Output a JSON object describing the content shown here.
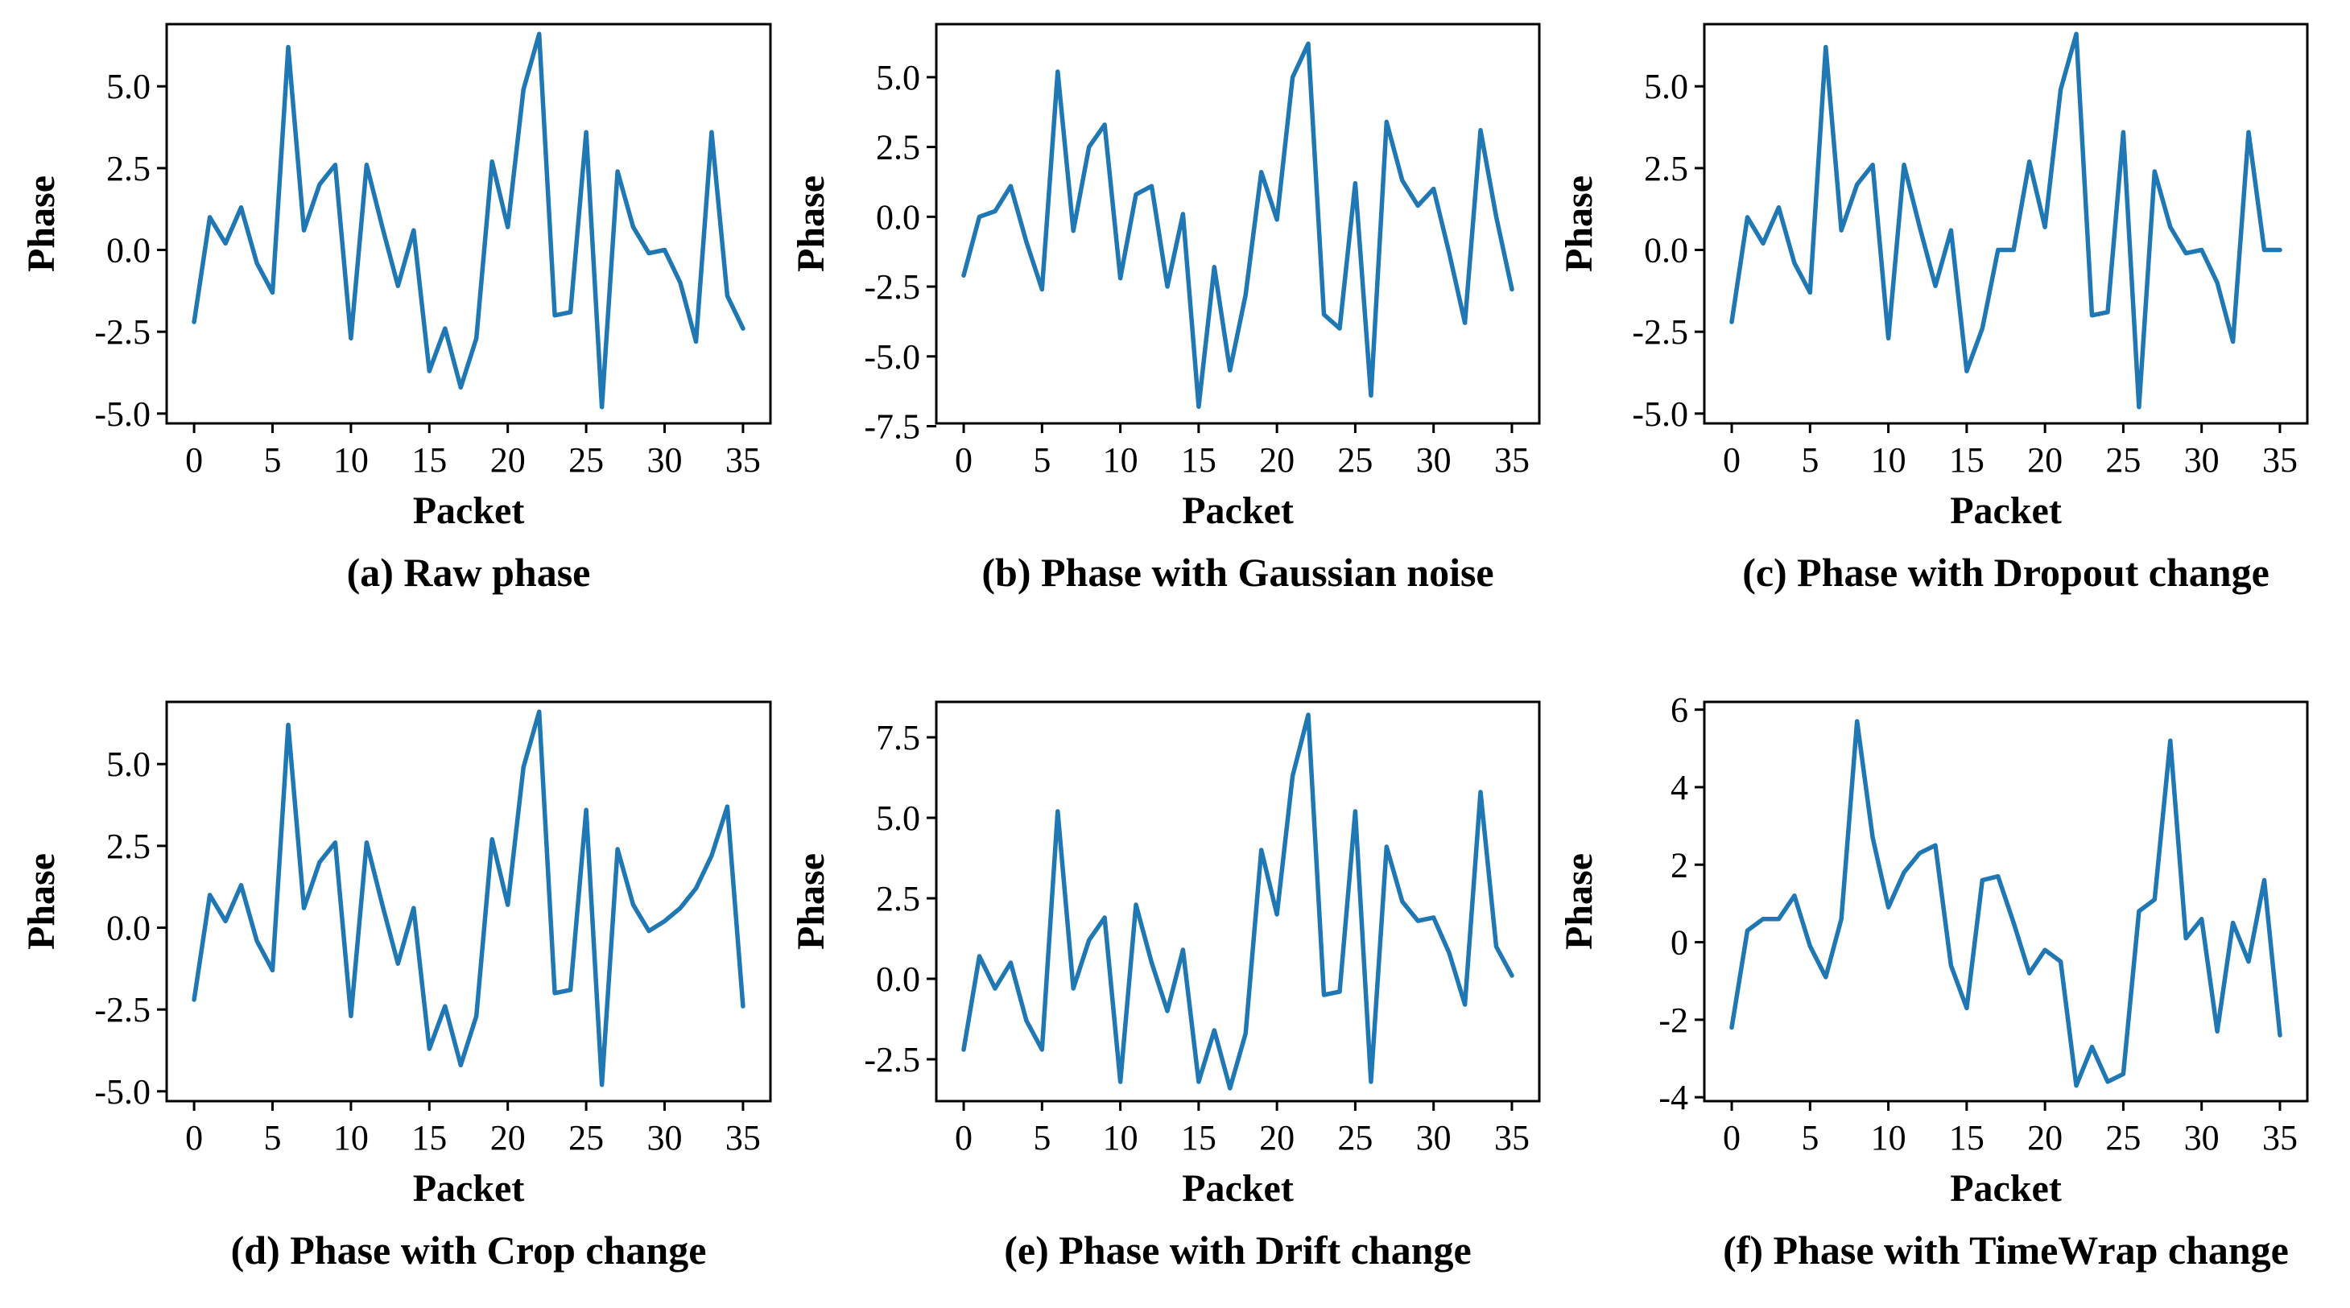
{
  "chart_data": [
    {
      "type": "line",
      "caption": "(a) Raw phase",
      "xlabel": "Packet",
      "ylabel": "Phase",
      "xlim": [
        -1.75,
        36.75
      ],
      "ylim": [
        -5.3,
        6.9
      ],
      "xticks": [
        0,
        5,
        10,
        15,
        20,
        25,
        30,
        35
      ],
      "xtick_labels": [
        "0",
        "5",
        "10",
        "15",
        "20",
        "25",
        "30",
        "35"
      ],
      "yticks": [
        -5,
        -2.5,
        0,
        2.5,
        5
      ],
      "ytick_labels": [
        "-5.0",
        "-2.5",
        "0.0",
        "2.5",
        "5.0"
      ],
      "grid": false,
      "color": "#1f77b4",
      "series": [
        {
          "values": [
            -2.2,
            1.0,
            0.2,
            1.3,
            -0.4,
            -1.3,
            6.2,
            0.6,
            2.0,
            2.6,
            -2.7,
            2.6,
            0.7,
            -1.1,
            0.6,
            -3.7,
            -2.4,
            -4.2,
            -2.7,
            2.7,
            0.7,
            4.9,
            6.6,
            -2.0,
            -1.9,
            3.6,
            -4.8,
            2.4,
            0.7,
            -0.1,
            0.0,
            -1.0,
            -2.8,
            3.6,
            -1.4,
            -2.4
          ]
        }
      ]
    },
    {
      "type": "line",
      "caption": "(b) Phase with Gaussian noise",
      "xlabel": "Packet",
      "ylabel": "Phase",
      "xlim": [
        -1.75,
        36.75
      ],
      "ylim": [
        -7.4,
        6.9
      ],
      "xticks": [
        0,
        5,
        10,
        15,
        20,
        25,
        30,
        35
      ],
      "xtick_labels": [
        "0",
        "5",
        "10",
        "15",
        "20",
        "25",
        "30",
        "35"
      ],
      "yticks": [
        -7.5,
        -5,
        -2.5,
        0,
        2.5,
        5
      ],
      "ytick_labels": [
        "-7.5",
        "-5.0",
        "-2.5",
        "0.0",
        "2.5",
        "5.0"
      ],
      "grid": false,
      "color": "#1f77b4",
      "series": [
        {
          "values": [
            -2.1,
            0.0,
            0.2,
            1.1,
            -0.9,
            -2.6,
            5.2,
            -0.5,
            2.5,
            3.3,
            -2.2,
            0.8,
            1.1,
            -2.5,
            0.1,
            -6.8,
            -1.8,
            -5.5,
            -2.8,
            1.6,
            -0.1,
            5.0,
            6.2,
            -3.5,
            -4.0,
            1.2,
            -6.4,
            3.4,
            1.3,
            0.4,
            1.0,
            -1.3,
            -3.8,
            3.1,
            0.0,
            -2.6
          ]
        }
      ]
    },
    {
      "type": "line",
      "caption": "(c) Phase with Dropout change",
      "xlabel": "Packet",
      "ylabel": "Phase",
      "xlim": [
        -1.75,
        36.75
      ],
      "ylim": [
        -5.3,
        6.9
      ],
      "xticks": [
        0,
        5,
        10,
        15,
        20,
        25,
        30,
        35
      ],
      "xtick_labels": [
        "0",
        "5",
        "10",
        "15",
        "20",
        "25",
        "30",
        "35"
      ],
      "yticks": [
        -5,
        -2.5,
        0,
        2.5,
        5
      ],
      "ytick_labels": [
        "-5.0",
        "-2.5",
        "0.0",
        "2.5",
        "5.0"
      ],
      "grid": false,
      "color": "#1f77b4",
      "series": [
        {
          "values": [
            -2.2,
            1.0,
            0.2,
            1.3,
            -0.4,
            -1.3,
            6.2,
            0.6,
            2.0,
            2.6,
            -2.7,
            2.6,
            0.7,
            -1.1,
            0.6,
            -3.7,
            -2.4,
            0.0,
            0.0,
            2.7,
            0.7,
            4.9,
            6.6,
            -2.0,
            -1.9,
            3.6,
            -4.8,
            2.4,
            0.7,
            -0.1,
            0.0,
            -1.0,
            -2.8,
            3.6,
            0.0,
            0.0
          ]
        }
      ]
    },
    {
      "type": "line",
      "caption": "(d) Phase with Crop change",
      "xlabel": "Packet",
      "ylabel": "Phase",
      "xlim": [
        -1.75,
        36.75
      ],
      "ylim": [
        -5.3,
        6.9
      ],
      "xticks": [
        0,
        5,
        10,
        15,
        20,
        25,
        30,
        35
      ],
      "xtick_labels": [
        "0",
        "5",
        "10",
        "15",
        "20",
        "25",
        "30",
        "35"
      ],
      "yticks": [
        -5,
        -2.5,
        0,
        2.5,
        5
      ],
      "ytick_labels": [
        "-5.0",
        "-2.5",
        "0.0",
        "2.5",
        "5.0"
      ],
      "grid": false,
      "color": "#1f77b4",
      "series": [
        {
          "values": [
            -2.2,
            1.0,
            0.2,
            1.3,
            -0.4,
            -1.3,
            6.2,
            0.6,
            2.0,
            2.6,
            -2.7,
            2.6,
            0.7,
            -1.1,
            0.6,
            -3.7,
            -2.4,
            -4.2,
            -2.7,
            2.7,
            0.7,
            4.9,
            6.6,
            -2.0,
            -1.9,
            3.6,
            -4.8,
            2.4,
            0.7,
            -0.1,
            0.2,
            0.6,
            1.2,
            2.2,
            3.7,
            -2.4
          ]
        }
      ]
    },
    {
      "type": "line",
      "caption": "(e) Phase with Drift change",
      "xlabel": "Packet",
      "ylabel": "Phase",
      "xlim": [
        -1.75,
        36.75
      ],
      "ylim": [
        -3.8,
        8.6
      ],
      "xticks": [
        0,
        5,
        10,
        15,
        20,
        25,
        30,
        35
      ],
      "xtick_labels": [
        "0",
        "5",
        "10",
        "15",
        "20",
        "25",
        "30",
        "35"
      ],
      "yticks": [
        -2.5,
        0,
        2.5,
        5,
        7.5
      ],
      "ytick_labels": [
        "-2.5",
        "0.0",
        "2.5",
        "5.0",
        "7.5"
      ],
      "grid": false,
      "color": "#1f77b4",
      "series": [
        {
          "values": [
            -2.2,
            0.7,
            -0.3,
            0.5,
            -1.3,
            -2.2,
            5.2,
            -0.3,
            1.2,
            1.9,
            -3.2,
            2.3,
            0.5,
            -1.0,
            0.9,
            -3.2,
            -1.6,
            -3.4,
            -1.7,
            4.0,
            2.0,
            6.3,
            8.2,
            -0.5,
            -0.4,
            5.2,
            -3.2,
            4.1,
            2.4,
            1.8,
            1.9,
            0.8,
            -0.8,
            5.8,
            1.0,
            0.1
          ]
        }
      ]
    },
    {
      "type": "line",
      "caption": "(f) Phase with TimeWrap change",
      "xlabel": "Packet",
      "ylabel": "Phase",
      "xlim": [
        -1.75,
        36.75
      ],
      "ylim": [
        -4.1,
        6.2
      ],
      "xticks": [
        0,
        5,
        10,
        15,
        20,
        25,
        30,
        35
      ],
      "xtick_labels": [
        "0",
        "5",
        "10",
        "15",
        "20",
        "25",
        "30",
        "35"
      ],
      "yticks": [
        -4,
        -2,
        0,
        2,
        4,
        6
      ],
      "ytick_labels": [
        "-4",
        "-2",
        "0",
        "2",
        "4",
        "6"
      ],
      "grid": false,
      "color": "#1f77b4",
      "series": [
        {
          "values": [
            -2.2,
            0.3,
            0.6,
            0.6,
            1.2,
            -0.1,
            -0.9,
            0.6,
            5.7,
            2.7,
            0.9,
            1.8,
            2.3,
            2.5,
            -0.6,
            -1.7,
            1.6,
            1.7,
            0.5,
            -0.8,
            -0.2,
            -0.5,
            -3.7,
            -2.7,
            -3.6,
            -3.4,
            0.8,
            1.1,
            5.2,
            0.1,
            0.6,
            -2.3,
            0.5,
            -0.5,
            1.6,
            -2.4
          ]
        }
      ]
    }
  ]
}
